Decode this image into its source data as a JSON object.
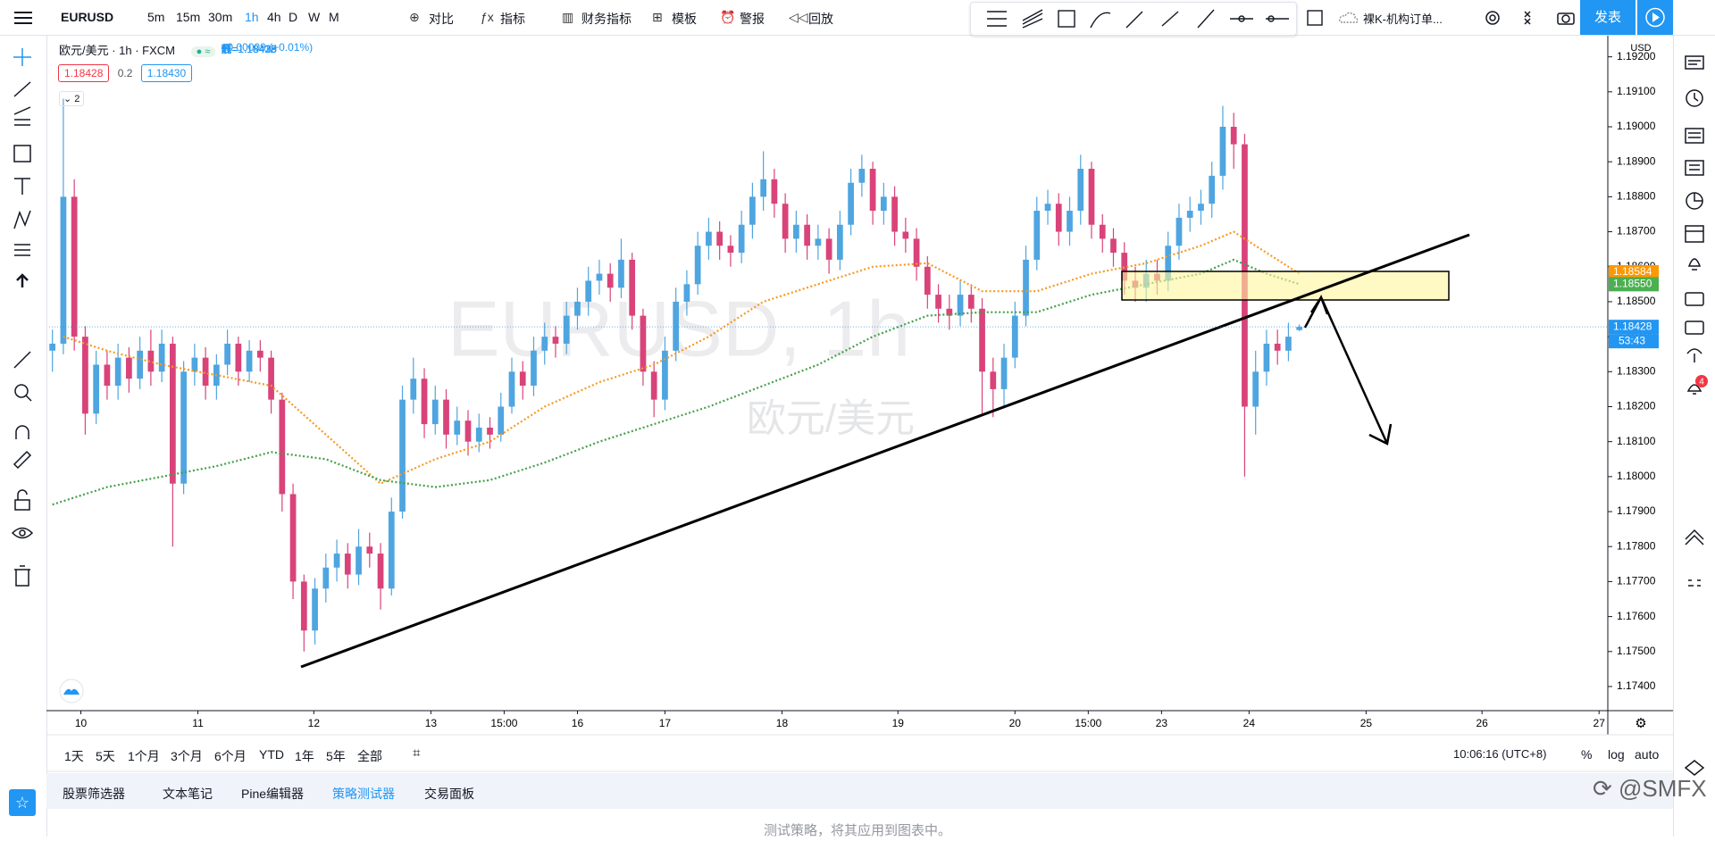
{
  "toolbar": {
    "symbol": "EURUSD",
    "intervals": [
      "5m",
      "15m",
      "30m",
      "1h",
      "4h",
      "D",
      "W",
      "M"
    ],
    "active_interval": "1h",
    "buttons": [
      "对比",
      "指标",
      "财务指标",
      "模板",
      "警报",
      "回放"
    ],
    "layout_name": "裸K-机构订单...",
    "publish": "发表"
  },
  "legend": {
    "title": "欧元/美元 · 1h · FXCM",
    "ohlc": [
      "开=1.18419",
      "高=1.18435",
      "低=1.18416",
      "收=1.18428",
      "+0.00009 (+0.01%)"
    ],
    "bid": "1.18428",
    "spread": "0.2",
    "ask": "1.18430",
    "indicators_count": "2"
  },
  "watermark": {
    "symbol": "EURUSD, 1h",
    "name": "欧元/美元"
  },
  "chart_data": {
    "type": "candlestick",
    "up_color": "#4ea5e0",
    "down_color": "#d9437a",
    "grid": false,
    "currency": "USD",
    "candles": [
      [
        1.1836,
        1.1842,
        1.183,
        1.1838
      ],
      [
        1.1838,
        1.1908,
        1.1835,
        1.188
      ],
      [
        1.188,
        1.1885,
        1.1836,
        1.184
      ],
      [
        1.184,
        1.1843,
        1.1812,
        1.1818
      ],
      [
        1.1818,
        1.1836,
        1.1815,
        1.1832
      ],
      [
        1.1832,
        1.1836,
        1.1822,
        1.1826
      ],
      [
        1.1826,
        1.1838,
        1.1822,
        1.1834
      ],
      [
        1.1834,
        1.1837,
        1.1824,
        1.1828
      ],
      [
        1.1828,
        1.184,
        1.1825,
        1.1836
      ],
      [
        1.1836,
        1.1842,
        1.1826,
        1.183
      ],
      [
        1.183,
        1.1842,
        1.1827,
        1.1838
      ],
      [
        1.1838,
        1.184,
        1.178,
        1.1798
      ],
      [
        1.1798,
        1.1833,
        1.1795,
        1.183
      ],
      [
        1.183,
        1.1838,
        1.1826,
        1.1834
      ],
      [
        1.1834,
        1.1837,
        1.1822,
        1.1826
      ],
      [
        1.1826,
        1.1835,
        1.1822,
        1.1832
      ],
      [
        1.1832,
        1.1842,
        1.1829,
        1.1838
      ],
      [
        1.1838,
        1.184,
        1.1826,
        1.183
      ],
      [
        1.183,
        1.1839,
        1.1827,
        1.1836
      ],
      [
        1.1836,
        1.1839,
        1.183,
        1.1834
      ],
      [
        1.1834,
        1.1836,
        1.1818,
        1.1822
      ],
      [
        1.1822,
        1.1824,
        1.179,
        1.1795
      ],
      [
        1.1795,
        1.1798,
        1.1765,
        1.177
      ],
      [
        1.177,
        1.1772,
        1.175,
        1.1756
      ],
      [
        1.1756,
        1.1771,
        1.1752,
        1.1768
      ],
      [
        1.1768,
        1.1778,
        1.1764,
        1.1774
      ],
      [
        1.1774,
        1.1782,
        1.177,
        1.1778
      ],
      [
        1.1778,
        1.1781,
        1.1768,
        1.1772
      ],
      [
        1.1772,
        1.1785,
        1.1769,
        1.178
      ],
      [
        1.178,
        1.1784,
        1.1774,
        1.1778
      ],
      [
        1.1778,
        1.1781,
        1.1762,
        1.1768
      ],
      [
        1.1768,
        1.1794,
        1.1766,
        1.179
      ],
      [
        1.179,
        1.1826,
        1.1788,
        1.1822
      ],
      [
        1.1822,
        1.1834,
        1.1818,
        1.1828
      ],
      [
        1.1828,
        1.1831,
        1.1811,
        1.1815
      ],
      [
        1.1815,
        1.1826,
        1.1812,
        1.1822
      ],
      [
        1.1822,
        1.1825,
        1.1808,
        1.1812
      ],
      [
        1.1812,
        1.182,
        1.1809,
        1.1816
      ],
      [
        1.1816,
        1.1819,
        1.1806,
        1.181
      ],
      [
        1.181,
        1.1818,
        1.1807,
        1.1814
      ],
      [
        1.1814,
        1.1817,
        1.1808,
        1.1812
      ],
      [
        1.1812,
        1.1824,
        1.181,
        1.182
      ],
      [
        1.182,
        1.1834,
        1.1818,
        1.183
      ],
      [
        1.183,
        1.1833,
        1.1822,
        1.1826
      ],
      [
        1.1826,
        1.184,
        1.1823,
        1.1836
      ],
      [
        1.1836,
        1.1844,
        1.1832,
        1.184
      ],
      [
        1.184,
        1.1843,
        1.1834,
        1.1838
      ],
      [
        1.1838,
        1.185,
        1.1835,
        1.1846
      ],
      [
        1.1846,
        1.1854,
        1.1842,
        1.185
      ],
      [
        1.185,
        1.186,
        1.1846,
        1.1856
      ],
      [
        1.1856,
        1.1862,
        1.1852,
        1.1858
      ],
      [
        1.1858,
        1.1861,
        1.185,
        1.1854
      ],
      [
        1.1854,
        1.1868,
        1.1851,
        1.1862
      ],
      [
        1.1862,
        1.1864,
        1.1842,
        1.1846
      ],
      [
        1.1846,
        1.1848,
        1.1826,
        1.183
      ],
      [
        1.183,
        1.1833,
        1.1817,
        1.1822
      ],
      [
        1.1822,
        1.184,
        1.1819,
        1.1836
      ],
      [
        1.1836,
        1.1854,
        1.1833,
        1.185
      ],
      [
        1.185,
        1.1859,
        1.1846,
        1.1855
      ],
      [
        1.1855,
        1.187,
        1.1852,
        1.1866
      ],
      [
        1.1866,
        1.1874,
        1.1862,
        1.187
      ],
      [
        1.187,
        1.1873,
        1.1862,
        1.1866
      ],
      [
        1.1866,
        1.1869,
        1.186,
        1.1864
      ],
      [
        1.1864,
        1.1876,
        1.1861,
        1.1872
      ],
      [
        1.1872,
        1.1884,
        1.1868,
        1.188
      ],
      [
        1.188,
        1.1893,
        1.1876,
        1.1885
      ],
      [
        1.1885,
        1.1888,
        1.1874,
        1.1878
      ],
      [
        1.1878,
        1.1881,
        1.1864,
        1.1868
      ],
      [
        1.1868,
        1.1876,
        1.1864,
        1.1872
      ],
      [
        1.1872,
        1.1875,
        1.1862,
        1.1866
      ],
      [
        1.1866,
        1.1872,
        1.1862,
        1.1868
      ],
      [
        1.1868,
        1.1871,
        1.1858,
        1.1862
      ],
      [
        1.1862,
        1.1876,
        1.1859,
        1.1872
      ],
      [
        1.1872,
        1.1888,
        1.1869,
        1.1884
      ],
      [
        1.1884,
        1.1892,
        1.188,
        1.1888
      ],
      [
        1.1888,
        1.189,
        1.1872,
        1.1876
      ],
      [
        1.1876,
        1.1884,
        1.1872,
        1.188
      ],
      [
        1.188,
        1.1883,
        1.1866,
        1.187
      ],
      [
        1.187,
        1.1874,
        1.1864,
        1.1868
      ],
      [
        1.1868,
        1.1871,
        1.1856,
        1.186
      ],
      [
        1.186,
        1.1863,
        1.1848,
        1.1852
      ],
      [
        1.1852,
        1.1855,
        1.1844,
        1.1848
      ],
      [
        1.1848,
        1.1852,
        1.1842,
        1.1846
      ],
      [
        1.1846,
        1.1856,
        1.1843,
        1.1852
      ],
      [
        1.1852,
        1.1855,
        1.1844,
        1.1848
      ],
      [
        1.1848,
        1.1851,
        1.1818,
        1.183
      ],
      [
        1.183,
        1.1834,
        1.1817,
        1.1825
      ],
      [
        1.1825,
        1.1838,
        1.182,
        1.1834
      ],
      [
        1.1834,
        1.185,
        1.1831,
        1.1846
      ],
      [
        1.1846,
        1.1866,
        1.1843,
        1.1862
      ],
      [
        1.1862,
        1.188,
        1.1859,
        1.1876
      ],
      [
        1.1876,
        1.1882,
        1.1872,
        1.1878
      ],
      [
        1.1878,
        1.1881,
        1.1866,
        1.187
      ],
      [
        1.187,
        1.188,
        1.1866,
        1.1876
      ],
      [
        1.1876,
        1.1892,
        1.1872,
        1.1888
      ],
      [
        1.1888,
        1.189,
        1.1868,
        1.1872
      ],
      [
        1.1872,
        1.1875,
        1.1864,
        1.1868
      ],
      [
        1.1868,
        1.1871,
        1.186,
        1.1864
      ],
      [
        1.1864,
        1.1867,
        1.1852,
        1.1856
      ],
      [
        1.1856,
        1.186,
        1.185,
        1.1854
      ],
      [
        1.1854,
        1.1862,
        1.185,
        1.1858
      ],
      [
        1.1858,
        1.1862,
        1.1852,
        1.1856
      ],
      [
        1.1856,
        1.187,
        1.1853,
        1.1866
      ],
      [
        1.1866,
        1.1878,
        1.1862,
        1.1874
      ],
      [
        1.1874,
        1.188,
        1.187,
        1.1876
      ],
      [
        1.1876,
        1.1882,
        1.1872,
        1.1878
      ],
      [
        1.1878,
        1.189,
        1.1874,
        1.1886
      ],
      [
        1.1886,
        1.1906,
        1.1882,
        1.19
      ],
      [
        1.19,
        1.1904,
        1.1888,
        1.1895
      ],
      [
        1.1895,
        1.1898,
        1.18,
        1.182
      ],
      [
        1.182,
        1.1836,
        1.1812,
        1.183
      ],
      [
        1.183,
        1.1842,
        1.1826,
        1.1838
      ],
      [
        1.1838,
        1.1842,
        1.1832,
        1.1836
      ],
      [
        1.1836,
        1.1844,
        1.1833,
        1.184
      ],
      [
        1.18419,
        1.18435,
        1.18416,
        1.18428
      ]
    ],
    "moving_averages": [
      {
        "color": "#f59a23",
        "x": [
          1,
          5,
          10,
          15,
          20,
          25,
          30,
          35,
          40,
          45,
          50,
          55,
          60,
          65,
          70,
          75,
          80,
          85,
          90,
          95,
          100,
          105,
          108,
          111,
          114
        ],
        "values": [
          1.184,
          1.1836,
          1.1832,
          1.1829,
          1.1826,
          1.1812,
          1.1798,
          1.1805,
          1.181,
          1.182,
          1.1827,
          1.1832,
          1.184,
          1.185,
          1.1855,
          1.186,
          1.1861,
          1.1853,
          1.1853,
          1.1858,
          1.1861,
          1.1866,
          1.187,
          1.1864,
          1.1858
        ]
      },
      {
        "color": "#43a047",
        "x": [
          0,
          5,
          10,
          15,
          20,
          25,
          30,
          35,
          40,
          45,
          50,
          55,
          60,
          65,
          70,
          75,
          80,
          85,
          90,
          95,
          100,
          105,
          108,
          111,
          114
        ],
        "values": [
          1.1792,
          1.1797,
          1.18,
          1.1803,
          1.1807,
          1.1805,
          1.1799,
          1.1797,
          1.1799,
          1.1804,
          1.181,
          1.1815,
          1.182,
          1.1826,
          1.1832,
          1.184,
          1.1846,
          1.1847,
          1.1847,
          1.1852,
          1.1855,
          1.1858,
          1.1862,
          1.1858,
          1.1855
        ]
      }
    ],
    "xlim": [
      -0.3,
      142.2
    ],
    "xticks": [
      {
        "value": 2.6,
        "label": "10"
      },
      {
        "value": 13.3,
        "label": "11"
      },
      {
        "value": 23.9,
        "label": "12"
      },
      {
        "value": 34.6,
        "label": "13"
      },
      {
        "value": 41.3,
        "label": "15:00"
      },
      {
        "value": 48,
        "label": "16"
      },
      {
        "value": 56,
        "label": "17"
      },
      {
        "value": 66.7,
        "label": "18"
      },
      {
        "value": 77.3,
        "label": "19"
      },
      {
        "value": 88,
        "label": "20"
      },
      {
        "value": 94.7,
        "label": "15:00"
      },
      {
        "value": 101.4,
        "label": "23"
      },
      {
        "value": 109.4,
        "label": "24"
      },
      {
        "value": 120.1,
        "label": "25"
      },
      {
        "value": 130.7,
        "label": "26"
      },
      {
        "value": 141.4,
        "label": "27"
      }
    ],
    "ylim": [
      1.17331,
      1.19268
    ],
    "yticks": [
      {
        "value": 1.174,
        "label": "1.17400"
      },
      {
        "value": 1.175,
        "label": "1.17500"
      },
      {
        "value": 1.176,
        "label": "1.17600"
      },
      {
        "value": 1.177,
        "label": "1.17700"
      },
      {
        "value": 1.178,
        "label": "1.17800"
      },
      {
        "value": 1.179,
        "label": "1.17900"
      },
      {
        "value": 1.18,
        "label": "1.18000"
      },
      {
        "value": 1.181,
        "label": "1.18100"
      },
      {
        "value": 1.182,
        "label": "1.18200"
      },
      {
        "value": 1.183,
        "label": "1.18300"
      },
      {
        "value": 1.184,
        "label": "1.18400"
      },
      {
        "value": 1.185,
        "label": "1.18500"
      },
      {
        "value": 1.186,
        "label": "1.18600"
      },
      {
        "value": 1.187,
        "label": "1.18700"
      },
      {
        "value": 1.188,
        "label": "1.18800"
      },
      {
        "value": 1.189,
        "label": "1.18900"
      },
      {
        "value": 1.19,
        "label": "1.19000"
      },
      {
        "value": 1.191,
        "label": "1.19100"
      },
      {
        "value": 1.192,
        "label": "1.19200"
      }
    ],
    "price_labels": [
      {
        "value": 1.18584,
        "color": "#ff9800"
      },
      {
        "value": 1.1855,
        "label": "1.18550",
        "color": "#4caf50"
      },
      {
        "value": 1.18428,
        "color": "#2196f3"
      }
    ],
    "countdown": "53:43"
  },
  "bottom_bar": {
    "ranges": [
      "1天",
      "5天",
      "1个月",
      "3个月",
      "6个月",
      "YTD",
      "1年",
      "5年",
      "全部"
    ],
    "clock": "10:06:16 (UTC+8)",
    "scale_options": [
      "%",
      "log",
      "auto"
    ]
  },
  "panel": {
    "tabs": [
      "股票筛选器",
      "文本笔记",
      "Pine编辑器",
      "策略测试器",
      "交易面板"
    ],
    "active_tab": "策略测试器",
    "message": "测试策略，将其应用到图表中。"
  },
  "brand": "@SMFX",
  "notifications": "4"
}
